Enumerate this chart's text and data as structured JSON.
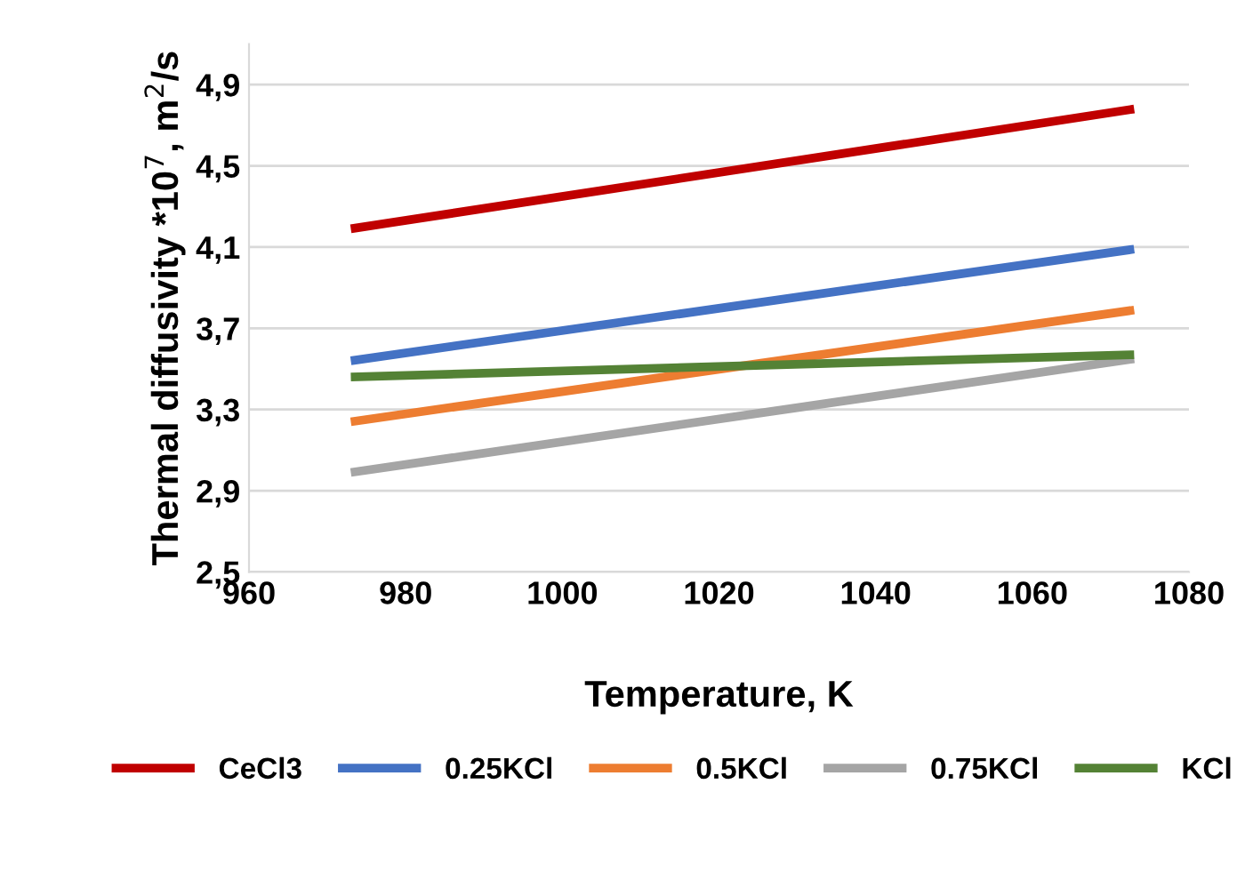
{
  "chart_data": {
    "type": "line",
    "xlabel": "Temperature, K",
    "ylabel": "Thermal diffusivity *10$^{7}$, m$^{2}$/s",
    "x": [
      973,
      1073
    ],
    "series": [
      {
        "name": "CeCl3",
        "color": "#c00000",
        "values": [
          4.19,
          4.78
        ]
      },
      {
        "name": "0.25KCl",
        "color": "#4472c4",
        "values": [
          3.54,
          4.09
        ]
      },
      {
        "name": "0.5KCl",
        "color": "#ed7d31",
        "values": [
          3.24,
          3.79
        ]
      },
      {
        "name": "0.75KCl",
        "color": "#a5a5a5",
        "values": [
          2.99,
          3.55
        ]
      },
      {
        "name": "KCl",
        "color": "#548235",
        "values": [
          3.46,
          3.57
        ]
      }
    ],
    "xlim": [
      960,
      1080
    ],
    "xticks": [
      960,
      980,
      1000,
      1020,
      1040,
      1060,
      1080
    ],
    "ylim": [
      2.5,
      5.1
    ],
    "yticks": [
      {
        "value": 2.5,
        "label": "2,5"
      },
      {
        "value": 2.9,
        "label": "2,9"
      },
      {
        "value": 3.3,
        "label": "3,3"
      },
      {
        "value": 3.7,
        "label": "3,7"
      },
      {
        "value": 4.1,
        "label": "4,1"
      },
      {
        "value": 4.5,
        "label": "4,5"
      },
      {
        "value": 4.9,
        "label": "4,9"
      }
    ],
    "grid": "y",
    "legend": "bottom",
    "marker": "none",
    "line_style": "solid"
  }
}
